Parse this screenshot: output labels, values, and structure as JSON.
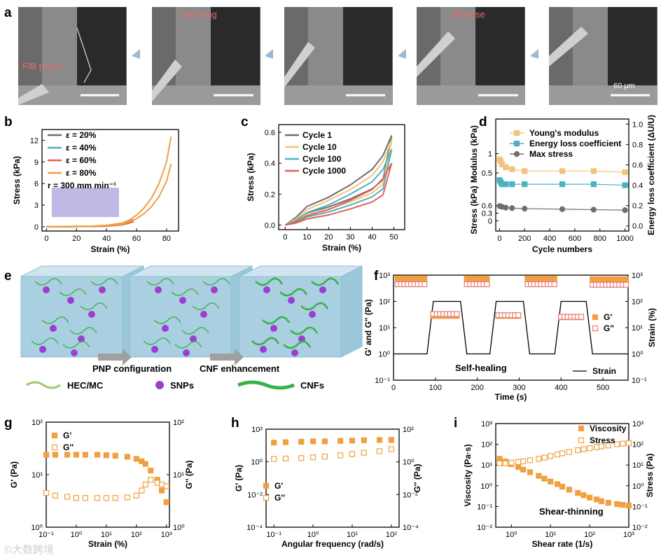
{
  "panel_a": {
    "label": "a",
    "annotations": [
      "FIB probe",
      "Bending",
      "Release"
    ],
    "scale_text": "60 μm"
  },
  "panel_e": {
    "label": "e",
    "arrow1": "PNP configuration",
    "arrow2": "CNF enhancement",
    "legend": [
      "HEC/MC",
      "SNPs",
      "CNFs"
    ]
  },
  "colors": {
    "orange": "#f0a040",
    "gray": "#6e6e6e",
    "teal": "#4ab3c3",
    "red": "#e0605a",
    "ltorange": "#f5c27a",
    "pink": "#e87a7a",
    "green": "#39b24a",
    "purple": "#9b3fd0",
    "cube": "#a9cfe0"
  },
  "chart_data": [
    {
      "id": "b",
      "type": "line",
      "label": "b",
      "xlabel": "Strain (%)",
      "ylabel": "Stress (kPa)",
      "xlim": [
        -3,
        88
      ],
      "ylim": [
        -0.6,
        13.5
      ],
      "xticks": [
        0,
        20,
        40,
        60,
        80
      ],
      "yticks": [
        0,
        3,
        6,
        9,
        12
      ],
      "legend": [
        "ε = 20%",
        "ε = 40%",
        "ε = 60%",
        "ε = 80%"
      ],
      "rate_text": "r = 300 mm min⁻¹",
      "series": [
        {
          "name": "ε = 20%",
          "color": "#6e6e6e",
          "x": [
            0,
            20
          ],
          "y": [
            0,
            0.02
          ]
        },
        {
          "name": "ε = 40%",
          "color": "#4ab3c3",
          "x": [
            0,
            20,
            30,
            40
          ],
          "y": [
            0,
            0.03,
            0.06,
            0.1
          ]
        },
        {
          "name": "ε = 60%",
          "color": "#e0605a",
          "x": [
            0,
            30,
            40,
            50,
            55,
            58
          ],
          "y": [
            0,
            0.06,
            0.12,
            0.35,
            0.7,
            1.0
          ]
        },
        {
          "name": "ε = 80%",
          "color": "#f0a040",
          "x": [
            0,
            30,
            40,
            50,
            55,
            60,
            65,
            70,
            75,
            80,
            83
          ],
          "y": [
            0,
            0.08,
            0.2,
            0.5,
            0.9,
            1.6,
            2.6,
            4.0,
            6.0,
            9.0,
            12.5
          ]
        }
      ]
    },
    {
      "id": "c",
      "type": "line",
      "label": "c",
      "xlabel": "Strain (%)",
      "ylabel": "Stress (kPa)",
      "xlim": [
        -3,
        55
      ],
      "ylim": [
        -0.03,
        0.65
      ],
      "xticks": [
        0,
        10,
        20,
        30,
        40,
        50
      ],
      "yticks": [
        0.0,
        0.2,
        0.4,
        0.6
      ],
      "legend": [
        "Cycle 1",
        "Cycle 10",
        "Cycle 100",
        "Cycle 1000"
      ],
      "series": [
        {
          "name": "Cycle 1",
          "color": "#6e6e6e",
          "x": [
            0,
            5,
            10,
            20,
            30,
            40,
            45,
            49
          ],
          "y": [
            0,
            0.05,
            0.12,
            0.18,
            0.26,
            0.36,
            0.45,
            0.58
          ]
        },
        {
          "name": "Cycle 10",
          "color": "#f5c27a",
          "x": [
            0,
            5,
            10,
            20,
            30,
            40,
            45,
            49
          ],
          "y": [
            0,
            0.04,
            0.1,
            0.16,
            0.23,
            0.32,
            0.41,
            0.55
          ]
        },
        {
          "name": "Cycle 100",
          "color": "#4ab3c3",
          "x": [
            0,
            5,
            10,
            20,
            30,
            40,
            45,
            49
          ],
          "y": [
            0,
            0.03,
            0.08,
            0.13,
            0.2,
            0.28,
            0.36,
            0.49
          ]
        },
        {
          "name": "Cycle 1000",
          "color": "#e0605a",
          "x": [
            0,
            5,
            10,
            20,
            30,
            40,
            45,
            49
          ],
          "y": [
            0,
            0.02,
            0.06,
            0.1,
            0.16,
            0.23,
            0.3,
            0.4
          ]
        }
      ]
    },
    {
      "id": "d",
      "type": "scatter",
      "label": "d",
      "xlabel": "Cycle numbers",
      "ylabel_top": "Modulus (kPa)",
      "ylabel_bottom": "Stress (kPa)",
      "ylabel_right": "Energy loss coefficient (ΔU/U)",
      "xlim": [
        -30,
        1030
      ],
      "xticks": [
        0,
        200,
        400,
        600,
        800,
        1000
      ],
      "yticks_left_top": [
        0.5,
        1
      ],
      "yticks_left_bottom": [
        0,
        0.3,
        0.6
      ],
      "yticks_right": [
        0.0,
        0.2,
        0.4,
        0.6,
        0.8,
        1.0
      ],
      "legend": [
        "Young's modulus",
        "Energy loss coefficient",
        "Max stress"
      ],
      "series": [
        {
          "name": "Young's modulus",
          "color": "#f5c27a",
          "marker": "square",
          "x": [
            1,
            10,
            20,
            50,
            100,
            200,
            500,
            750,
            1000
          ],
          "y": [
            0.85,
            0.8,
            0.72,
            0.65,
            0.6,
            0.55,
            0.55,
            0.55,
            0.52
          ]
        },
        {
          "name": "Energy loss coefficient",
          "color": "#4ab3c3",
          "marker": "square",
          "x": [
            1,
            10,
            20,
            50,
            100,
            200,
            500,
            750,
            1000
          ],
          "y": [
            0.45,
            0.43,
            0.41,
            0.41,
            0.41,
            0.41,
            0.41,
            0.41,
            0.4
          ]
        },
        {
          "name": "Max stress",
          "color": "#6e6e6e",
          "marker": "circle",
          "x": [
            1,
            10,
            20,
            50,
            100,
            200,
            500,
            750,
            1000
          ],
          "y": [
            0.58,
            0.57,
            0.55,
            0.52,
            0.5,
            0.48,
            0.46,
            0.44,
            0.42
          ]
        }
      ]
    },
    {
      "id": "f",
      "type": "scatter",
      "label": "f",
      "xlabel": "Time (s)",
      "ylabel": "G' and G\" (Pa)",
      "ylabel_right": "Strain (%)",
      "xlim": [
        0,
        560
      ],
      "xticks": [
        0,
        100,
        200,
        300,
        400,
        500
      ],
      "ylog": [
        -1,
        3
      ],
      "yticks": [
        "10⁻¹",
        "10⁰",
        "10¹",
        "10²",
        "10³"
      ],
      "yright_log": [
        -1,
        3
      ],
      "legend": [
        "G'",
        "G\"",
        "Strain"
      ],
      "annotation": "Self-healing",
      "series": [
        {
          "name": "G'",
          "color": "#f0a040",
          "fill": true,
          "segments": [
            [
              [
                10,
                80
              ],
              750
            ],
            [
              [
                95,
                155
              ],
              28
            ],
            [
              [
                175,
                230
              ],
              750
            ],
            [
              [
                250,
                305
              ],
              28
            ],
            [
              [
                320,
                385
              ],
              750
            ],
            [
              [
                400,
                455
              ],
              25
            ],
            [
              [
                475,
                555
              ],
              700
            ]
          ]
        },
        {
          "name": "G\"",
          "color": "#e87a7a",
          "fill": false,
          "segments": [
            [
              [
                10,
                80
              ],
              450
            ],
            [
              [
                95,
                155
              ],
              33
            ],
            [
              [
                175,
                230
              ],
              450
            ],
            [
              [
                250,
                305
              ],
              30
            ],
            [
              [
                320,
                385
              ],
              450
            ],
            [
              [
                400,
                455
              ],
              26
            ],
            [
              [
                475,
                555
              ],
              430
            ]
          ]
        },
        {
          "name": "Strain",
          "color": "#000",
          "x": [
            0,
            80,
            95,
            160,
            175,
            230,
            245,
            310,
            325,
            385,
            400,
            460,
            475,
            560
          ],
          "y": [
            1,
            1,
            100,
            100,
            1,
            1,
            100,
            100,
            1,
            1,
            100,
            100,
            1,
            1
          ]
        }
      ]
    },
    {
      "id": "g",
      "type": "scatter",
      "label": "g",
      "xlabel": "Strain (%)",
      "ylabel": "G' (Pa)",
      "ylabel_right": "G'' (Pa)",
      "xlog": [
        -1,
        3.1
      ],
      "xticks": [
        "10⁻¹",
        "10⁰",
        "10¹",
        "10²",
        "10³"
      ],
      "ylog": [
        0,
        2
      ],
      "yticks": [
        "10⁰",
        "10¹",
        "10²"
      ],
      "legend": [
        "G'",
        "G''"
      ],
      "series": [
        {
          "name": "G'",
          "color": "#f0a040",
          "fill": true,
          "x": [
            0.1,
            0.2,
            0.5,
            1,
            2,
            5,
            10,
            20,
            50,
            100,
            150,
            200,
            300,
            500,
            700,
            1000
          ],
          "y": [
            24,
            24,
            24,
            24,
            24,
            24,
            23.5,
            23,
            22,
            20,
            18,
            16,
            12,
            8,
            5,
            3
          ]
        },
        {
          "name": "G''",
          "color": "#f0a040",
          "fill": false,
          "x": [
            0.1,
            0.2,
            0.5,
            1,
            2,
            5,
            10,
            20,
            50,
            100,
            150,
            200,
            300,
            500,
            700,
            1000
          ],
          "y": [
            4.5,
            4,
            3.8,
            3.6,
            3.6,
            3.6,
            3.6,
            3.6,
            3.7,
            4,
            5,
            6.5,
            8,
            7,
            6.5,
            6
          ]
        }
      ]
    },
    {
      "id": "h",
      "type": "scatter",
      "label": "h",
      "xlabel": "Angular frequency (rad/s)",
      "ylabel": "G' (Pa)",
      "ylabel_right": "G'' (Pa)",
      "xlog": [
        -1.2,
        2.2
      ],
      "xticks": [
        "10⁻¹",
        "10⁰",
        "10¹",
        "10²"
      ],
      "ylog": [
        -4,
        2
      ],
      "yticks": [
        "10⁻⁴",
        "10⁻²",
        "10⁰",
        "10²"
      ],
      "legend": [
        "G'",
        "G''"
      ],
      "series": [
        {
          "name": "G'",
          "color": "#f0a040",
          "fill": true,
          "x": [
            0.1,
            0.2,
            0.5,
            1,
            2,
            5,
            10,
            20,
            50,
            100
          ],
          "y": [
            15,
            16,
            17,
            18,
            18,
            19,
            20,
            21,
            22,
            22
          ]
        },
        {
          "name": "G''",
          "color": "#f0a040",
          "fill": false,
          "x": [
            0.1,
            0.2,
            0.5,
            1,
            2,
            5,
            10,
            20,
            50,
            100
          ],
          "y": [
            1.5,
            1.6,
            1.7,
            1.9,
            2.1,
            2.5,
            3,
            3.6,
            4.5,
            6
          ]
        }
      ]
    },
    {
      "id": "i",
      "type": "scatter",
      "label": "i",
      "xlabel": "Shear rate (1/s)",
      "ylabel": "Viscosity (Pa·s)",
      "ylabel_right": "Stress (Pa)",
      "xlog": [
        -0.4,
        3
      ],
      "xticks": [
        "10⁰",
        "10¹",
        "10²",
        "10³"
      ],
      "ylog": [
        -2,
        3
      ],
      "yticks": [
        "10⁻²",
        "10⁻¹",
        "10⁰",
        "10¹",
        "10²",
        "10³"
      ],
      "legend": [
        "Viscosity",
        "Stress"
      ],
      "annotation": "Shear-thinning",
      "series": [
        {
          "name": "Viscosity",
          "color": "#f0a040",
          "fill": true,
          "x": [
            0.5,
            0.7,
            1,
            1.5,
            2,
            3,
            5,
            7,
            10,
            15,
            20,
            30,
            50,
            70,
            100,
            150,
            200,
            300,
            500,
            700,
            1000
          ],
          "y": [
            20,
            15,
            11,
            8,
            6,
            4.5,
            3,
            2.2,
            1.6,
            1.2,
            0.9,
            0.65,
            0.45,
            0.35,
            0.27,
            0.22,
            0.18,
            0.15,
            0.13,
            0.12,
            0.11
          ]
        },
        {
          "name": "Stress",
          "color": "#f0a040",
          "fill": false,
          "x": [
            0.5,
            0.7,
            1,
            1.5,
            2,
            3,
            5,
            7,
            10,
            15,
            20,
            30,
            50,
            70,
            100,
            150,
            200,
            300,
            500,
            700,
            1000
          ],
          "y": [
            12,
            12,
            13,
            14,
            15,
            17,
            20,
            23,
            27,
            32,
            37,
            43,
            52,
            58,
            65,
            73,
            80,
            88,
            100,
            108,
            115
          ]
        }
      ]
    }
  ]
}
